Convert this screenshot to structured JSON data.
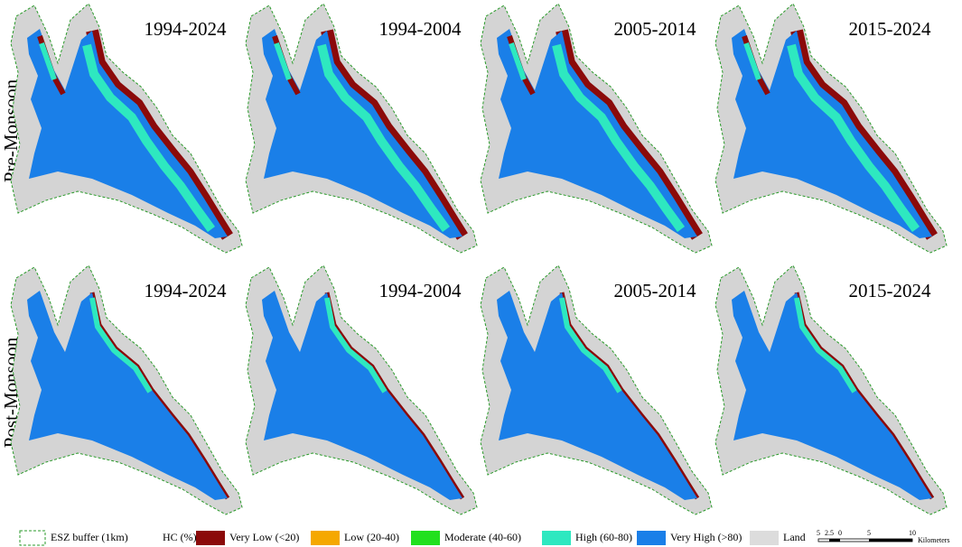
{
  "rows": [
    {
      "label": "Pre-Monsoon",
      "panels": [
        "1994-2024",
        "1994-2004",
        "2005-2014",
        "2015-2024"
      ]
    },
    {
      "label": "Post-Monsoon",
      "panels": [
        "1994-2024",
        "1994-2004",
        "2005-2014",
        "2015-2024"
      ]
    }
  ],
  "legend": {
    "buffer": "ESZ buffer (1km)",
    "heading": "HC (%)",
    "items": [
      {
        "label": "Very Low (<20)",
        "color": "#8b0a0a"
      },
      {
        "label": "Low (20-40)",
        "color": "#f5a800"
      },
      {
        "label": "Moderate (40-60)",
        "color": "#22e01e"
      },
      {
        "label": "High (60-80)",
        "color": "#2ee8c0"
      },
      {
        "label": "Very High (>80)",
        "color": "#1a7fe8"
      },
      {
        "label": "Land",
        "color": "#dcdcdc"
      }
    ]
  },
  "scale": {
    "ticks": [
      "5",
      "2.5",
      "0",
      "5",
      "10"
    ],
    "unit": "Kilometers"
  }
}
